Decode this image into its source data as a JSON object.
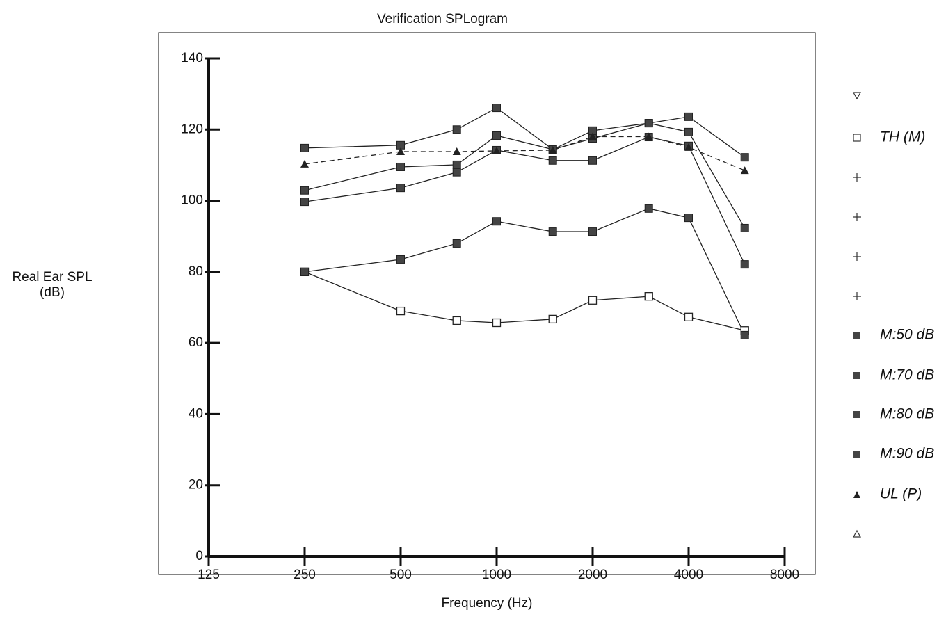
{
  "chart_data": {
    "type": "line",
    "title": "Verification SPLogram",
    "x_label": "Frequency (Hz)",
    "y_label": "Real Ear SPL (dB)",
    "x": [
      250,
      500,
      750,
      1000,
      1500,
      2000,
      3000,
      4000,
      6000
    ],
    "x_scale": "log",
    "xlim": [
      125,
      8000
    ],
    "xticks": [
      125,
      250,
      500,
      1000,
      2000,
      4000,
      8000
    ],
    "ylim": [
      0,
      140
    ],
    "yticks": [
      0,
      20,
      40,
      60,
      80,
      100,
      120,
      140
    ],
    "series": [
      {
        "name": "TH (M)",
        "color": "#222222",
        "marker": "open-square",
        "line_style": "solid",
        "values": [
          80,
          69,
          66.3,
          65.7,
          66.7,
          72,
          73.1,
          67.3,
          63.5
        ]
      },
      {
        "name": "M:50 dB",
        "color": "#444444",
        "marker": "filled-square",
        "line_style": "solid",
        "values": [
          80,
          83.5,
          88,
          94.2,
          91.3,
          91.3,
          97.8,
          95.2,
          62.2
        ]
      },
      {
        "name": "M:70 dB",
        "color": "#444444",
        "marker": "filled-square",
        "line_style": "solid",
        "values": [
          99.7,
          103.6,
          108,
          114.2,
          111.3,
          111.3,
          117.9,
          115.4,
          82.1
        ]
      },
      {
        "name": "M:80 dB",
        "color": "#444444",
        "marker": "filled-square",
        "line_style": "solid",
        "values": [
          102.9,
          109.5,
          110.1,
          118.3,
          114.4,
          117.5,
          121.8,
          119.3,
          92.3
        ]
      },
      {
        "name": "M:90 dB",
        "color": "#444444",
        "marker": "filled-square",
        "line_style": "solid",
        "values": [
          114.8,
          115.6,
          120,
          126.1,
          114.4,
          119.7,
          121.8,
          123.6,
          112.2
        ]
      },
      {
        "name": "UL (P)",
        "color": "#222222",
        "marker": "triangle",
        "line_style": "dashed",
        "values": [
          110.3,
          113.8,
          113.8,
          114,
          114.2,
          118,
          118,
          115,
          108.5
        ]
      }
    ]
  }
}
